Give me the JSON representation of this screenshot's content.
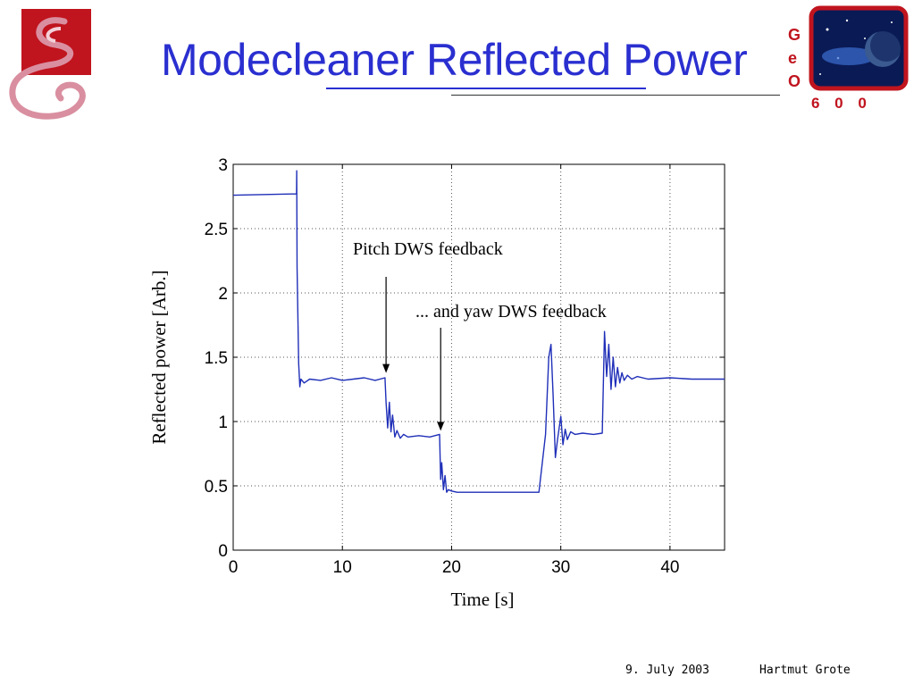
{
  "slide": {
    "title": "Modecleaner Reflected Power",
    "footer_date": "9. July 2003",
    "footer_author": "Hartmut Grote"
  },
  "logo_right": {
    "letters": [
      "G",
      "e",
      "O"
    ],
    "number": "6 0 0"
  },
  "colors": {
    "title": "#2a2fd0",
    "series": "#1f2fb8",
    "logo_red": "#c0141e",
    "logo_pink": "#d98fa0"
  },
  "chart_data": {
    "type": "line",
    "title": "",
    "xlabel": "Time [s]",
    "ylabel": "Reflected power [Arb.]",
    "xlim": [
      0,
      45
    ],
    "ylim": [
      0,
      3
    ],
    "xticks": [
      0,
      10,
      20,
      30,
      40
    ],
    "yticks": [
      0,
      0.5,
      1,
      1.5,
      2,
      2.5,
      3
    ],
    "grid": true,
    "annotations": [
      {
        "text": "Pitch DWS feedback",
        "x": 14,
        "y": 1.35
      },
      {
        "text": "... and yaw DWS feedback",
        "x": 19,
        "y": 0.9
      }
    ],
    "series": [
      {
        "x": [
          0,
          5.8,
          5.82,
          5.85,
          6.0,
          6.1,
          6.2,
          6.5,
          7,
          8,
          9,
          10,
          11,
          12,
          13,
          13.9,
          14.0,
          14.15,
          14.3,
          14.45,
          14.6,
          14.8,
          15.0,
          15.3,
          15.6,
          16,
          17,
          18,
          18.9,
          19.0,
          19.1,
          19.25,
          19.4,
          19.55,
          19.7,
          20.0,
          20.5,
          22,
          24,
          26,
          28,
          28.6,
          28.9,
          29.1,
          29.3,
          29.5,
          29.7,
          30.0,
          30.2,
          30.4,
          30.6,
          30.9,
          31.3,
          32,
          33,
          33.8,
          34.0,
          34.2,
          34.4,
          34.6,
          34.8,
          35.0,
          35.2,
          35.4,
          35.6,
          35.8,
          36.1,
          36.5,
          37,
          38,
          40,
          42,
          45
        ],
        "y": [
          2.76,
          2.77,
          2.95,
          2.2,
          1.45,
          1.27,
          1.33,
          1.3,
          1.33,
          1.32,
          1.34,
          1.32,
          1.33,
          1.34,
          1.32,
          1.34,
          1.15,
          0.95,
          1.15,
          0.92,
          1.05,
          0.88,
          0.93,
          0.87,
          0.9,
          0.88,
          0.89,
          0.88,
          0.9,
          0.55,
          0.68,
          0.47,
          0.58,
          0.45,
          0.47,
          0.46,
          0.45,
          0.45,
          0.45,
          0.45,
          0.45,
          0.9,
          1.5,
          1.6,
          1.2,
          0.72,
          0.86,
          1.04,
          0.82,
          0.94,
          0.86,
          0.92,
          0.9,
          0.91,
          0.9,
          0.91,
          1.7,
          1.35,
          1.6,
          1.25,
          1.5,
          1.27,
          1.42,
          1.3,
          1.38,
          1.32,
          1.36,
          1.33,
          1.35,
          1.33,
          1.34,
          1.33,
          1.33
        ]
      }
    ]
  }
}
